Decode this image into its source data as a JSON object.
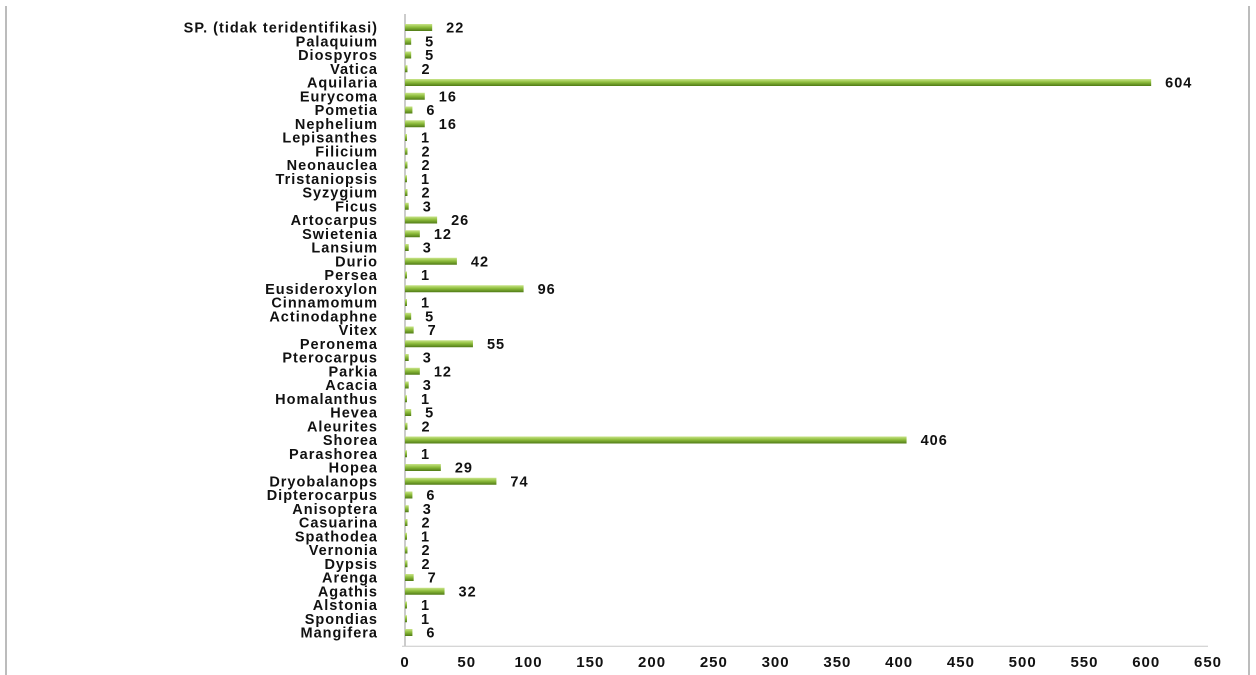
{
  "chart_data": {
    "type": "bar",
    "orientation": "horizontal",
    "title": "",
    "xlabel": "",
    "ylabel": "",
    "xlim": [
      0,
      650
    ],
    "x_ticks": [
      "0",
      "50",
      "100",
      "150",
      "200",
      "250",
      "300",
      "350",
      "400",
      "450",
      "500",
      "550",
      "600",
      "650"
    ],
    "grid": false,
    "legend": "none",
    "bar_color": "#8fbe3d",
    "bar_highlight": "#c9e48a",
    "bar_shadow": "#4f7a15",
    "categories": [
      "SP. (tidak teridentifikasi)",
      "Palaquium",
      "Diospyros",
      "Vatica",
      "Aquilaria",
      "Eurycoma",
      "Pometia",
      "Nephelium",
      "Lepisanthes",
      "Filicium",
      "Neonauclea",
      "Tristaniopsis",
      "Syzygium",
      "Ficus",
      "Artocarpus",
      "Swietenia",
      "Lansium",
      "Durio",
      "Persea",
      "Eusideroxylon",
      "Cinnamomum",
      "Actinodaphne",
      "Vitex",
      "Peronema",
      "Pterocarpus",
      "Parkia",
      "Acacia",
      "Homalanthus",
      "Hevea",
      "Aleurites",
      "Shorea",
      "Parashorea",
      "Hopea",
      "Dryobalanops",
      "Dipterocarpus",
      "Anisoptera",
      "Casuarina",
      "Spathodea",
      "Vernonia",
      "Dypsis",
      "Arenga",
      "Agathis",
      "Alstonia",
      "Spondias",
      "Mangifera"
    ],
    "values": [
      22,
      5,
      5,
      2,
      604,
      16,
      6,
      16,
      1,
      2,
      2,
      1,
      2,
      3,
      26,
      12,
      3,
      42,
      1,
      96,
      1,
      5,
      7,
      55,
      3,
      12,
      3,
      1,
      5,
      2,
      406,
      1,
      29,
      74,
      6,
      3,
      2,
      1,
      2,
      2,
      7,
      32,
      1,
      1,
      6
    ],
    "data_labels": [
      "22",
      "5",
      "5",
      "2",
      "604",
      "16",
      "6",
      "16",
      "1",
      "2",
      "2",
      "1",
      "2",
      "3",
      "26",
      "12",
      "3",
      "42",
      "1",
      "96",
      "1",
      "5",
      "7",
      "55",
      "3",
      "12",
      "3",
      "1",
      "5",
      "2",
      "406",
      "1",
      "29",
      "74",
      "6",
      "3",
      "2",
      "1",
      "2",
      "2",
      "7",
      "32",
      "1",
      "1",
      "6"
    ]
  }
}
